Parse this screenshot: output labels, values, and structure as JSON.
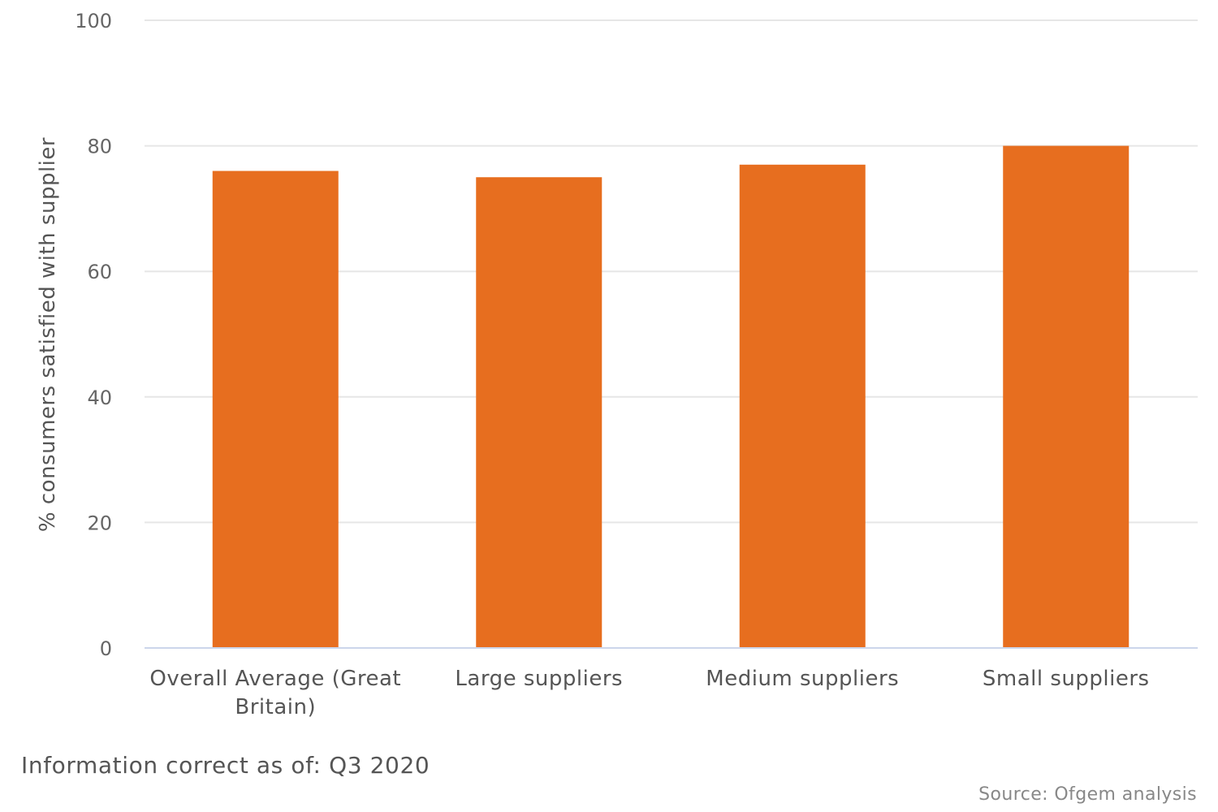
{
  "chart_data": {
    "type": "bar",
    "title": "",
    "xlabel": "",
    "ylabel": "% consumers satisfied with supplier",
    "categories": [
      "Overall Average (Great Britain)",
      "Large suppliers",
      "Medium suppliers",
      "Small suppliers"
    ],
    "category_lines": [
      [
        "Overall Average (Great",
        "Britain)"
      ],
      [
        "Large suppliers"
      ],
      [
        "Medium suppliers"
      ],
      [
        "Small suppliers"
      ]
    ],
    "values": [
      76,
      75,
      77,
      80
    ],
    "ylim": [
      0,
      100
    ],
    "yticks": [
      0,
      20,
      40,
      60,
      80,
      100
    ],
    "grid": true,
    "legend": "none",
    "bar_color": "#E76E1F",
    "grid_color": "#E6E6E6",
    "axis_color": "#CCD6EB"
  },
  "footer": {
    "info": "Information correct as of: Q3 2020",
    "source": "Source: Ofgem analysis"
  }
}
